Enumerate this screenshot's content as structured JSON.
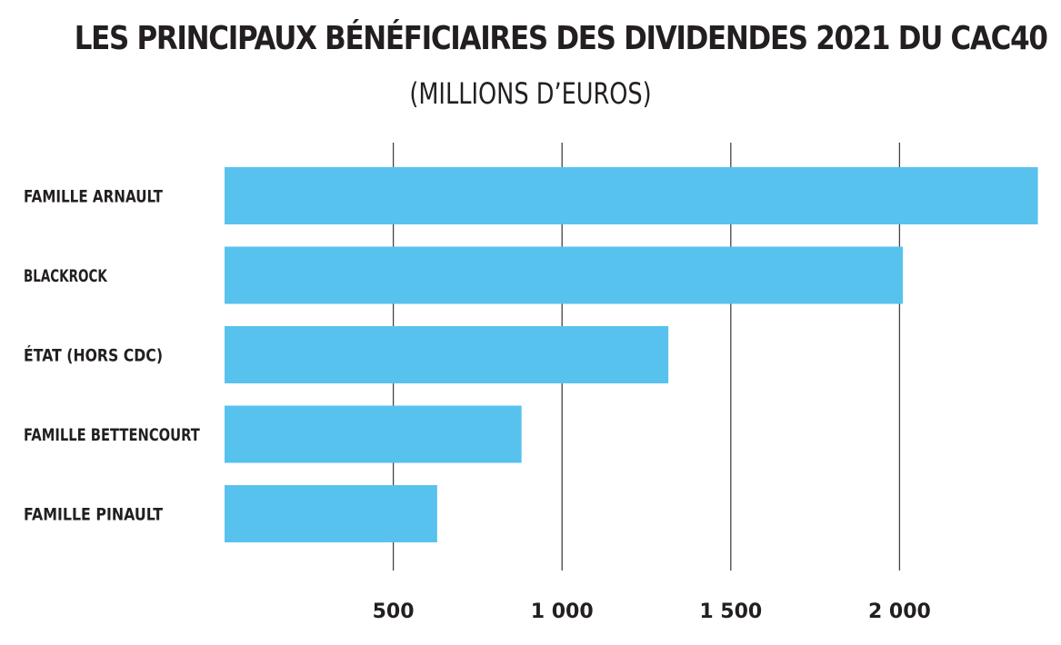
{
  "chart_data": {
    "type": "bar",
    "orientation": "horizontal",
    "title": "LES PRINCIPAUX BÉNÉFICIAIRES DES DIVIDENDES 2021 DU CAC40",
    "subtitle": "(MILLIONS D’EUROS)",
    "categories": [
      "FAMILLE ARNAULT",
      "BLACKROCK",
      "ÉTAT (HORS CDC)",
      "FAMILLE BETTENCOURT",
      "FAMILLE PINAULT"
    ],
    "values": [
      2410,
      2010,
      1315,
      880,
      630
    ],
    "xticks": [
      500,
      1000,
      1500,
      2000
    ],
    "xtick_labels": [
      "500",
      "1 000",
      "1 500",
      "2 000"
    ],
    "xlim": [
      0,
      2420
    ],
    "grid": true,
    "bar_color": "#58c2ef",
    "grid_color": "#444444",
    "text_color": "#231f20"
  }
}
